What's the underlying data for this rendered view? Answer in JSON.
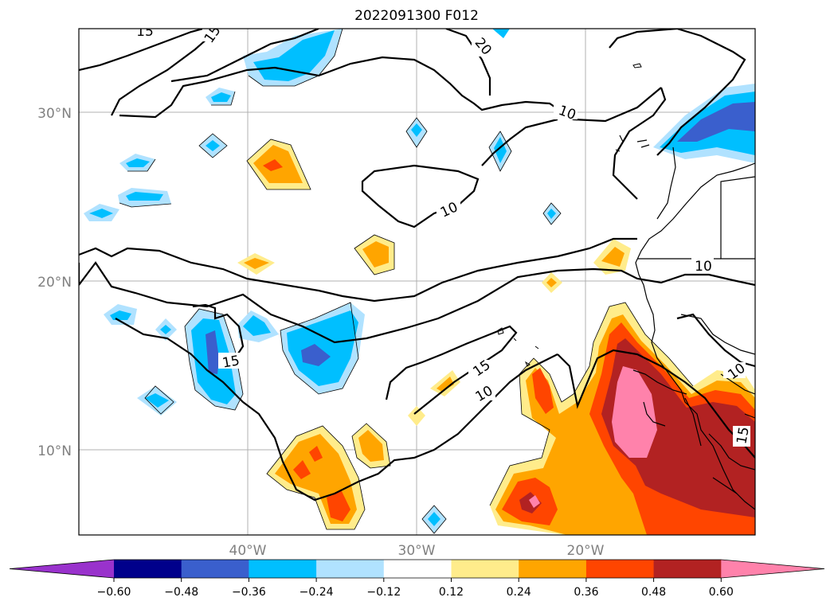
{
  "title": "2022091300 F012",
  "lat_ticks": [
    "30°N",
    "20°N",
    "10°N"
  ],
  "lon_ticks": [
    "40°W",
    "30°W",
    "20°W"
  ],
  "contour_labels": [
    "10",
    "10",
    "10",
    "10",
    "15",
    "15",
    "15",
    "15",
    "20",
    "15"
  ],
  "colorbar": {
    "tick_labels": [
      "−0.60",
      "−0.48",
      "−0.36",
      "−0.24",
      "−0.12",
      "0.12",
      "0.24",
      "0.36",
      "0.48",
      "0.60"
    ],
    "colors": [
      "#9932cc",
      "#00008b",
      "#3a5fcd",
      "#00bfff",
      "#b0e2ff",
      "#ffffff",
      "#ffec8b",
      "#ffa500",
      "#ff4500",
      "#b22222",
      "#ff82ab"
    ]
  },
  "palette": {
    "pos1": "#ffec8b",
    "pos2": "#ffa500",
    "pos3": "#ff4500",
    "pos4": "#b22222",
    "pos5": "#ff82ab",
    "neg1": "#b0e2ff",
    "neg2": "#00bfff",
    "neg3": "#3a5fcd"
  }
}
